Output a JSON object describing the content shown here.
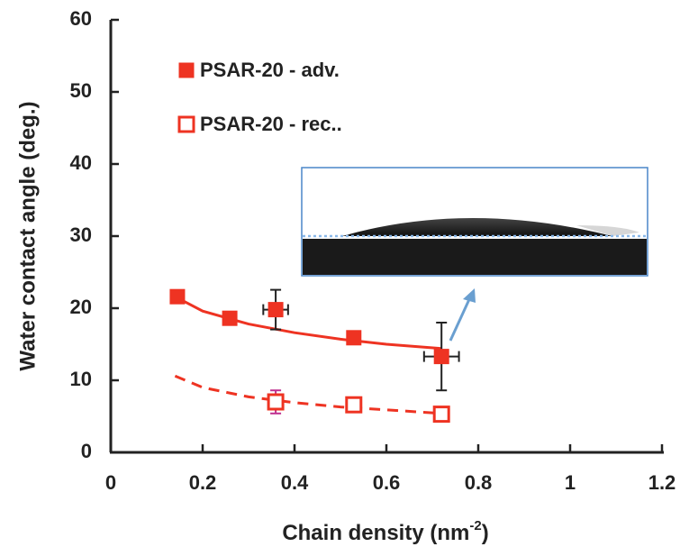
{
  "chart_data": {
    "type": "scatter",
    "x_label": {
      "text": "Chain density (nm",
      "sup": "-2",
      "end": ")"
    },
    "y_label": "Water contact angle (deg.)",
    "xlim": [
      0,
      1.2
    ],
    "xticks": [
      0,
      0.2,
      0.4,
      0.6,
      0.8,
      1,
      1.2
    ],
    "ylim": [
      0,
      60
    ],
    "yticks": [
      0,
      10,
      20,
      30,
      40,
      50,
      60
    ],
    "series": [
      {
        "name": "PSAR-20 - adv.",
        "color": "#ee3322",
        "filled": true,
        "x": [
          0.145,
          0.259,
          0.359,
          0.529,
          0.72
        ],
        "values": [
          21.6,
          18.6,
          19.8,
          15.9,
          13.3
        ],
        "errors": [
          null,
          null,
          2.75,
          null,
          4.7
        ],
        "xerrors": [
          null,
          null,
          0.027,
          null,
          0.038
        ]
      },
      {
        "name": "PSAR-20 - rec..",
        "color": "#ee3322",
        "filled": false,
        "x": [
          0.359,
          0.529,
          0.72
        ],
        "values": [
          7.0,
          6.6,
          5.3
        ],
        "errors": [
          1.6,
          null,
          null
        ],
        "xerrors": [
          null,
          null,
          null
        ]
      }
    ],
    "fits": [
      {
        "color": "#ee3322",
        "dashed": false,
        "x": [
          0.14,
          0.2,
          0.3,
          0.4,
          0.5,
          0.6,
          0.72
        ],
        "values": [
          21.6,
          19.6,
          17.8,
          16.6,
          15.7,
          15.0,
          14.4
        ]
      },
      {
        "color": "#ee3322",
        "dashed": true,
        "x": [
          0.14,
          0.2,
          0.3,
          0.4,
          0.5,
          0.6,
          0.72
        ],
        "values": [
          10.6,
          9.0,
          7.7,
          6.9,
          6.3,
          5.9,
          5.4
        ]
      }
    ]
  }
}
